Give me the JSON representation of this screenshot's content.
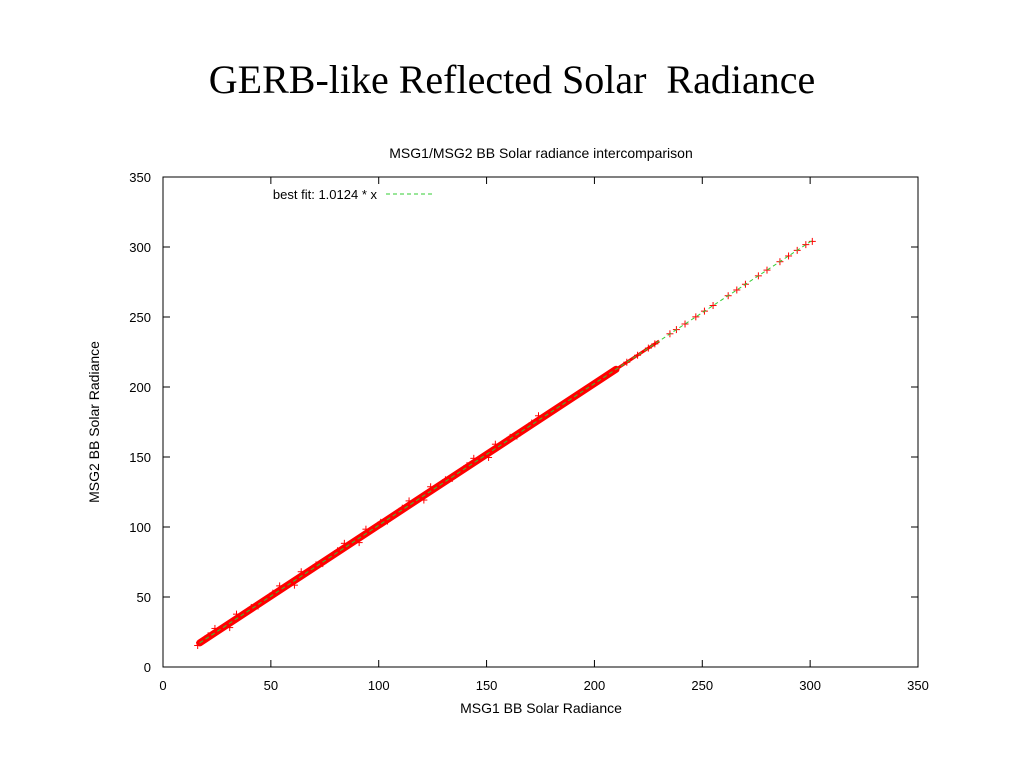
{
  "slide": {
    "title": "GERB-like Reflected Solar  Radiance"
  },
  "chart_data": {
    "type": "scatter",
    "title": "MSG1/MSG2 BB Solar radiance intercomparison",
    "xlabel": "MSG1 BB Solar Radiance",
    "ylabel": "MSG2 BB Solar Radiance",
    "xlim": [
      0,
      350
    ],
    "ylim": [
      0,
      350
    ],
    "xticks": [
      0,
      50,
      100,
      150,
      200,
      250,
      300,
      350
    ],
    "yticks": [
      0,
      50,
      100,
      150,
      200,
      250,
      300,
      350
    ],
    "grid": false,
    "legend_position": "top-left",
    "series": [
      {
        "name": "",
        "kind": "points",
        "marker": "+",
        "color": "#ff0000",
        "x_range": [
          17,
          301
        ],
        "approx_relation": "y ≈ 1.0124 * x",
        "points": [
          [
            17,
            17.5
          ],
          [
            20,
            20.2
          ],
          [
            25,
            25.4
          ],
          [
            30,
            30.3
          ],
          [
            35,
            35.6
          ],
          [
            40,
            40.4
          ],
          [
            45,
            45.7
          ],
          [
            50,
            50.6
          ],
          [
            55,
            55.8
          ],
          [
            60,
            60.6
          ],
          [
            65,
            65.9
          ],
          [
            70,
            70.8
          ],
          [
            75,
            76.0
          ],
          [
            80,
            80.9
          ],
          [
            85,
            86.2
          ],
          [
            90,
            91.0
          ],
          [
            95,
            96.3
          ],
          [
            100,
            101.2
          ],
          [
            105,
            106.4
          ],
          [
            110,
            111.3
          ],
          [
            115,
            116.5
          ],
          [
            120,
            121.4
          ],
          [
            125,
            126.6
          ],
          [
            130,
            131.6
          ],
          [
            135,
            136.8
          ],
          [
            140,
            141.7
          ],
          [
            145,
            146.9
          ],
          [
            150,
            151.8
          ],
          [
            155,
            157.0
          ],
          [
            160,
            161.9
          ],
          [
            165,
            167.1
          ],
          [
            170,
            172.1
          ],
          [
            175,
            177.3
          ],
          [
            180,
            182.2
          ],
          [
            185,
            187.4
          ],
          [
            190,
            192.3
          ],
          [
            195,
            197.5
          ],
          [
            200,
            202.5
          ],
          [
            205,
            207.6
          ],
          [
            210,
            212.6
          ],
          [
            215,
            217.7
          ],
          [
            220,
            222.7
          ],
          [
            225,
            227.8
          ],
          [
            228,
            230.8
          ],
          [
            235,
            238.0
          ],
          [
            238,
            241.0
          ],
          [
            242,
            245.0
          ],
          [
            247,
            250.1
          ],
          [
            251,
            254.2
          ],
          [
            255,
            258.2
          ],
          [
            262,
            265.2
          ],
          [
            266,
            269.3
          ],
          [
            270,
            273.4
          ],
          [
            276,
            279.4
          ],
          [
            280,
            283.5
          ],
          [
            286,
            289.5
          ],
          [
            290,
            293.6
          ],
          [
            294,
            297.6
          ],
          [
            298,
            301.7
          ],
          [
            301,
            304.0
          ]
        ]
      },
      {
        "name": "best fit: 1.0124 * x",
        "kind": "line",
        "color": "#33cc33",
        "dash": true,
        "slope": 1.0124,
        "x_range": [
          17,
          301
        ]
      }
    ]
  }
}
